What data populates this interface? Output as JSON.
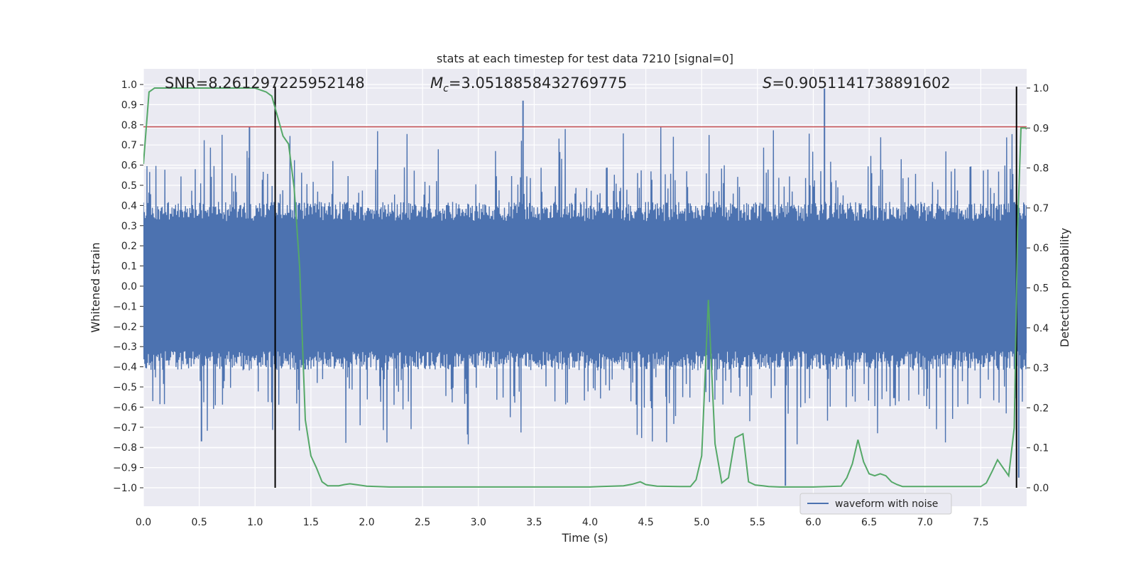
{
  "chart_data": {
    "type": "line",
    "title": "stats at each timestep for test data 7210 [signal=0]",
    "xlabel": "Time (s)",
    "ylabel": "Whitened strain",
    "y2label": "Detection probability",
    "xlim": [
      0.0,
      8.0
    ],
    "ylim": [
      -1.1,
      1.1
    ],
    "y2lim": [
      -0.05,
      1.05
    ],
    "x_ticks": [
      0.0,
      0.5,
      1.0,
      1.5,
      2.0,
      2.5,
      3.0,
      3.5,
      4.0,
      4.5,
      5.0,
      5.5,
      6.0,
      6.5,
      7.0,
      7.5
    ],
    "x_tick_labels": [
      "0.0",
      "0.5",
      "1.0",
      "1.5",
      "2.0",
      "2.5",
      "3.0",
      "3.5",
      "4.0",
      "4.5",
      "5.0",
      "5.5",
      "6.0",
      "6.5",
      "7.0",
      "7.5"
    ],
    "y_ticks": [
      1.0,
      0.9,
      0.8,
      0.7,
      0.6,
      0.5,
      0.4,
      0.3,
      0.2,
      0.1,
      0.0,
      -0.1,
      -0.2,
      -0.3,
      -0.4,
      -0.5,
      -0.6,
      -0.7,
      -0.8,
      -0.9,
      -1.0
    ],
    "y_tick_labels": [
      "1.0",
      "0.9",
      "0.8",
      "0.7",
      "0.6",
      "0.5",
      "0.4",
      "0.3",
      "0.2",
      "0.1",
      "0.0",
      "−0.1",
      "−0.2",
      "−0.3",
      "−0.4",
      "−0.5",
      "−0.6",
      "−0.7",
      "−0.8",
      "−0.9",
      "−1.0"
    ],
    "y2_ticks": [
      1.0,
      0.9,
      0.8,
      0.7,
      0.6,
      0.5,
      0.4,
      0.3,
      0.2,
      0.1,
      0.0
    ],
    "y2_tick_labels": [
      "1.0",
      "0.9",
      "0.8",
      "0.7",
      "0.6",
      "0.5",
      "0.4",
      "0.3",
      "0.2",
      "0.1",
      "0.0"
    ],
    "stats": {
      "snr_label": "SNR=8.261297225952148",
      "mc_symbol": "M",
      "mc_subscript": "c",
      "mc_value": "=3.0518858432769775",
      "s_symbol": "S",
      "s_value": "=0.9051141738891602"
    },
    "threshold_line": {
      "y": 0.79,
      "color": "#c44e52"
    },
    "vertical_markers": [
      1.18,
      7.82
    ],
    "waveform": {
      "name": "waveform with noise",
      "color": "#4c72b0",
      "sample_count": 2000,
      "base_amplitude": 0.38,
      "spikes": [
        {
          "x": 3.4,
          "y": 0.92
        },
        {
          "x": 6.1,
          "y": 0.98
        },
        {
          "x": 0.95,
          "y": 0.79
        },
        {
          "x": 5.75,
          "y": -0.99
        },
        {
          "x": 7.84,
          "y": -0.95
        },
        {
          "x": 0.52,
          "y": -0.77
        }
      ]
    },
    "detection_probability": {
      "name": "detection probability",
      "color": "#55a868",
      "x": [
        0.0,
        0.05,
        0.1,
        0.2,
        0.4,
        0.6,
        0.8,
        1.0,
        1.05,
        1.1,
        1.15,
        1.2,
        1.25,
        1.3,
        1.35,
        1.4,
        1.45,
        1.5,
        1.55,
        1.6,
        1.65,
        1.7,
        1.75,
        1.8,
        1.85,
        1.9,
        2.0,
        2.2,
        2.5,
        3.0,
        3.5,
        4.0,
        4.1,
        4.3,
        4.38,
        4.45,
        4.5,
        4.6,
        4.8,
        4.9,
        4.95,
        5.0,
        5.06,
        5.12,
        5.18,
        5.24,
        5.3,
        5.37,
        5.42,
        5.48,
        5.55,
        5.6,
        5.7,
        6.0,
        6.25,
        6.3,
        6.35,
        6.4,
        6.45,
        6.5,
        6.55,
        6.6,
        6.65,
        6.7,
        6.75,
        6.8,
        7.0,
        7.3,
        7.5,
        7.55,
        7.6,
        7.65,
        7.7,
        7.75,
        7.8,
        7.83,
        7.86,
        7.9,
        7.95
      ],
      "y": [
        0.81,
        0.99,
        1.0,
        1.0,
        1.0,
        1.0,
        1.0,
        1.0,
        0.995,
        0.99,
        0.98,
        0.93,
        0.88,
        0.86,
        0.75,
        0.55,
        0.17,
        0.08,
        0.05,
        0.015,
        0.005,
        0.005,
        0.005,
        0.008,
        0.01,
        0.008,
        0.004,
        0.002,
        0.002,
        0.002,
        0.002,
        0.002,
        0.003,
        0.005,
        0.009,
        0.015,
        0.008,
        0.004,
        0.003,
        0.003,
        0.02,
        0.08,
        0.47,
        0.11,
        0.012,
        0.025,
        0.125,
        0.135,
        0.015,
        0.007,
        0.005,
        0.003,
        0.002,
        0.002,
        0.004,
        0.025,
        0.06,
        0.12,
        0.065,
        0.035,
        0.03,
        0.035,
        0.03,
        0.015,
        0.008,
        0.003,
        0.003,
        0.003,
        0.003,
        0.012,
        0.04,
        0.07,
        0.05,
        0.03,
        0.15,
        0.65,
        0.9,
        0.9,
        0.89
      ]
    }
  },
  "legend": {
    "label": "waveform with noise"
  },
  "colors": {
    "plot_background": "#eaeaf2",
    "grid": "#ffffff",
    "marker_line": "#000000"
  }
}
